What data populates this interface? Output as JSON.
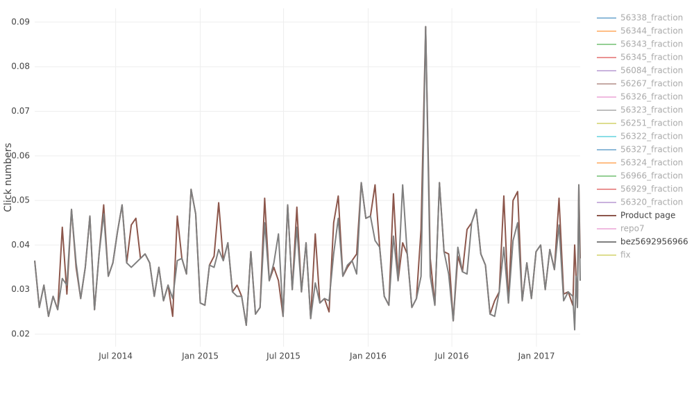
{
  "chart_data": {
    "type": "line",
    "y_label": "Click numbers",
    "x": [
      "2014-01-06",
      "2014-01-16",
      "2014-01-26",
      "2014-02-05",
      "2014-02-15",
      "2014-02-25",
      "2014-03-07",
      "2014-03-17",
      "2014-03-27",
      "2014-04-06",
      "2014-04-16",
      "2014-04-26",
      "2014-05-06",
      "2014-05-16",
      "2014-05-26",
      "2014-06-05",
      "2014-06-15",
      "2014-06-25",
      "2014-07-05",
      "2014-07-15",
      "2014-07-25",
      "2014-08-04",
      "2014-08-14",
      "2014-08-24",
      "2014-09-03",
      "2014-09-13",
      "2014-09-23",
      "2014-10-03",
      "2014-10-13",
      "2014-10-23",
      "2014-11-02",
      "2014-11-12",
      "2014-11-22",
      "2014-12-02",
      "2014-12-12",
      "2014-12-22",
      "2015-01-01",
      "2015-01-11",
      "2015-01-21",
      "2015-01-31",
      "2015-02-10",
      "2015-02-20",
      "2015-03-02",
      "2015-03-12",
      "2015-03-22",
      "2015-04-01",
      "2015-04-11",
      "2015-04-21",
      "2015-05-01",
      "2015-05-11",
      "2015-05-21",
      "2015-05-31",
      "2015-06-10",
      "2015-06-20",
      "2015-06-30",
      "2015-07-10",
      "2015-07-20",
      "2015-07-30",
      "2015-08-09",
      "2015-08-19",
      "2015-08-29",
      "2015-09-08",
      "2015-09-18",
      "2015-09-28",
      "2015-10-08",
      "2015-10-18",
      "2015-10-28",
      "2015-11-07",
      "2015-11-17",
      "2015-11-27",
      "2015-12-07",
      "2015-12-17",
      "2015-12-27",
      "2016-01-06",
      "2016-01-16",
      "2016-01-26",
      "2016-02-05",
      "2016-02-15",
      "2016-02-25",
      "2016-03-06",
      "2016-03-16",
      "2016-03-26",
      "2016-04-05",
      "2016-04-15",
      "2016-04-25",
      "2016-05-05",
      "2016-05-15",
      "2016-05-25",
      "2016-06-04",
      "2016-06-14",
      "2016-06-24",
      "2016-07-04",
      "2016-07-14",
      "2016-07-24",
      "2016-08-03",
      "2016-08-13",
      "2016-08-23",
      "2016-09-02",
      "2016-09-12",
      "2016-09-22",
      "2016-10-02",
      "2016-10-12",
      "2016-10-22",
      "2016-11-01",
      "2016-11-11",
      "2016-11-21",
      "2016-12-01",
      "2016-12-11",
      "2016-12-21",
      "2016-12-31",
      "2017-01-10",
      "2017-01-20",
      "2017-01-30",
      "2017-02-09",
      "2017-02-19",
      "2017-03-01",
      "2017-03-11",
      "2017-03-21",
      "2017-03-25",
      "2017-03-28",
      "2017-03-31",
      "2017-04-03",
      "2017-04-06"
    ],
    "xlim": [
      "2014-01-06",
      "2017-04-06"
    ],
    "xticks": [
      {
        "value": "2014-07-01",
        "label": "Jul 2014"
      },
      {
        "value": "2015-01-01",
        "label": "Jan 2015"
      },
      {
        "value": "2015-07-01",
        "label": "Jul 2015"
      },
      {
        "value": "2016-01-01",
        "label": "Jan 2016"
      },
      {
        "value": "2016-07-01",
        "label": "Jul 2016"
      },
      {
        "value": "2017-01-01",
        "label": "Jan 2017"
      }
    ],
    "ylim": [
      0.0172,
      0.0931
    ],
    "yticks": [
      0.02,
      0.03,
      0.04,
      0.05,
      0.06,
      0.07,
      0.08,
      0.09
    ],
    "grid": true,
    "legend": "right",
    "series": [
      {
        "name": "56338_fraction",
        "color": "#1f77b4",
        "visible": "legendonly"
      },
      {
        "name": "56344_fraction",
        "color": "#ff7f0e",
        "visible": "legendonly"
      },
      {
        "name": "56343_fraction",
        "color": "#2ca02c",
        "visible": "legendonly"
      },
      {
        "name": "56345_fraction",
        "color": "#d62728",
        "visible": "legendonly"
      },
      {
        "name": "56084_fraction",
        "color": "#9467bd",
        "visible": "legendonly"
      },
      {
        "name": "56267_fraction",
        "color": "#8c564b",
        "visible": "legendonly"
      },
      {
        "name": "56326_fraction",
        "color": "#e377c2",
        "visible": "legendonly"
      },
      {
        "name": "56323_fraction",
        "color": "#7f7f7f",
        "visible": "legendonly"
      },
      {
        "name": "56251_fraction",
        "color": "#bcbd22",
        "visible": "legendonly"
      },
      {
        "name": "56322_fraction",
        "color": "#17becf",
        "visible": "legendonly"
      },
      {
        "name": "56327_fraction",
        "color": "#1f77b4",
        "visible": "legendonly"
      },
      {
        "name": "56324_fraction",
        "color": "#ff7f0e",
        "visible": "legendonly"
      },
      {
        "name": "56966_fraction",
        "color": "#2ca02c",
        "visible": "legendonly"
      },
      {
        "name": "56929_fraction",
        "color": "#d62728",
        "visible": "legendonly"
      },
      {
        "name": "56320_fraction",
        "color": "#9467bd",
        "visible": "legendonly"
      },
      {
        "name": "Product page",
        "color": "#8c564b",
        "values": [
          0.0365,
          0.026,
          0.031,
          0.024,
          0.0285,
          0.0255,
          0.044,
          0.029,
          0.048,
          0.035,
          0.028,
          0.035,
          0.0465,
          0.0255,
          0.038,
          0.049,
          0.033,
          0.036,
          0.043,
          0.049,
          0.036,
          0.0445,
          0.046,
          0.037,
          0.038,
          0.036,
          0.0285,
          0.035,
          0.0275,
          0.031,
          0.024,
          0.0465,
          0.037,
          0.0335,
          0.0525,
          0.047,
          0.027,
          0.0265,
          0.0355,
          0.0375,
          0.0495,
          0.0365,
          0.0405,
          0.0295,
          0.031,
          0.0285,
          0.022,
          0.0385,
          0.0245,
          0.026,
          0.0505,
          0.032,
          0.035,
          0.032,
          0.024,
          0.049,
          0.03,
          0.0485,
          0.0295,
          0.0405,
          0.0235,
          0.0425,
          0.027,
          0.028,
          0.025,
          0.045,
          0.051,
          0.033,
          0.035,
          0.0365,
          0.038,
          0.054,
          0.046,
          0.0465,
          0.0535,
          0.0395,
          0.0285,
          0.0265,
          0.0515,
          0.032,
          0.0405,
          0.038,
          0.026,
          0.028,
          0.0435,
          0.089,
          0.037,
          0.0265,
          0.054,
          0.0385,
          0.038,
          0.023,
          0.0375,
          0.034,
          0.0435,
          0.045,
          0.048,
          0.038,
          0.0355,
          0.0245,
          0.0275,
          0.0295,
          0.051,
          0.027,
          0.05,
          0.052,
          0.0275,
          0.036,
          0.028,
          0.0385,
          0.04,
          0.03,
          0.039,
          0.0345,
          0.0505,
          0.029,
          0.0295,
          0.0265,
          0.04,
          0.033,
          0.026,
          0.0535,
          0.037
        ]
      },
      {
        "name": "repo7",
        "color": "#e377c2",
        "visible": "legendonly"
      },
      {
        "name": "bez5692956966",
        "color": "#7f7f7f",
        "values": [
          0.0365,
          0.026,
          0.031,
          0.024,
          0.0285,
          0.0255,
          0.0325,
          0.031,
          0.048,
          0.036,
          0.028,
          0.035,
          0.0465,
          0.0255,
          0.038,
          0.047,
          0.033,
          0.036,
          0.043,
          0.049,
          0.036,
          0.035,
          0.036,
          0.037,
          0.038,
          0.036,
          0.0285,
          0.035,
          0.0275,
          0.031,
          0.028,
          0.0365,
          0.037,
          0.0335,
          0.0525,
          0.047,
          0.027,
          0.0265,
          0.0355,
          0.035,
          0.039,
          0.0365,
          0.0405,
          0.0295,
          0.0285,
          0.0285,
          0.022,
          0.0385,
          0.0245,
          0.026,
          0.045,
          0.032,
          0.036,
          0.0425,
          0.024,
          0.049,
          0.03,
          0.044,
          0.0295,
          0.0405,
          0.0235,
          0.0315,
          0.027,
          0.028,
          0.0275,
          0.038,
          0.046,
          0.033,
          0.0355,
          0.0365,
          0.0335,
          0.054,
          0.046,
          0.0465,
          0.041,
          0.0395,
          0.0285,
          0.0265,
          0.042,
          0.032,
          0.0535,
          0.038,
          0.026,
          0.028,
          0.033,
          0.089,
          0.033,
          0.0265,
          0.054,
          0.0385,
          0.0335,
          0.023,
          0.0395,
          0.034,
          0.0335,
          0.045,
          0.048,
          0.038,
          0.0355,
          0.0245,
          0.024,
          0.0295,
          0.0395,
          0.027,
          0.041,
          0.045,
          0.0275,
          0.036,
          0.028,
          0.0385,
          0.04,
          0.03,
          0.039,
          0.0345,
          0.0445,
          0.0275,
          0.0295,
          0.0285,
          0.021,
          0.033,
          0.026,
          0.0535,
          0.032
        ]
      },
      {
        "name": "fix",
        "color": "#bcbd22",
        "visible": "legendonly"
      }
    ]
  }
}
